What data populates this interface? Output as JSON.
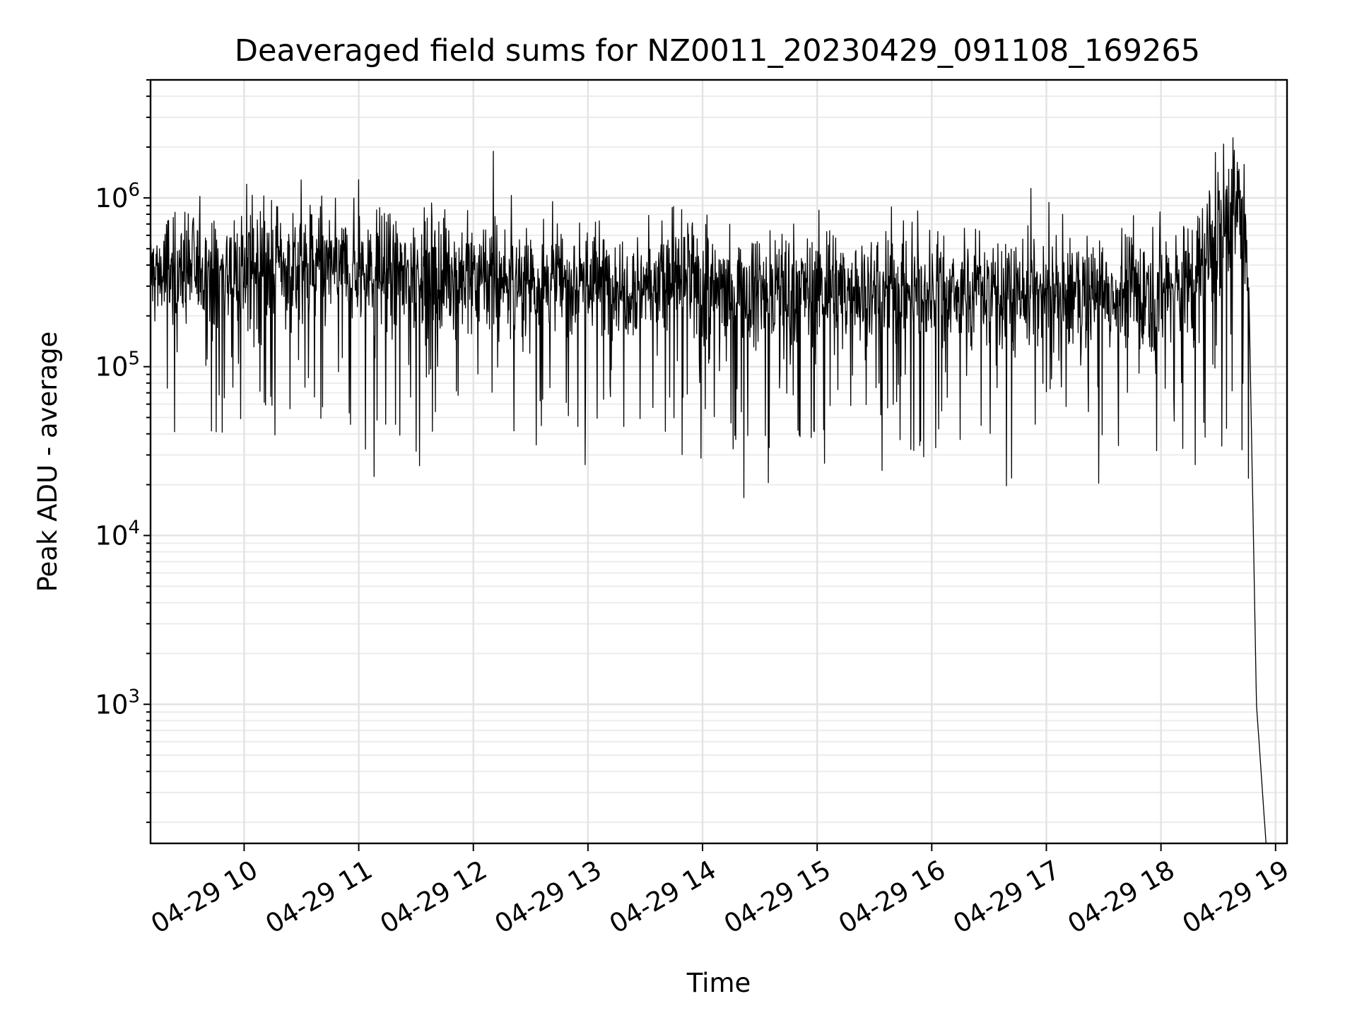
{
  "chart_data": {
    "type": "line",
    "title": "Deaveraged field sums for NZ0011_20230429_091108_169265",
    "xlabel": "Time",
    "ylabel": "Peak ADU - average",
    "yscale": "log",
    "ylim": [
      150,
      5000000
    ],
    "xlim": [
      "2023-04-29 09:11",
      "2023-04-29 19:06"
    ],
    "grid": true,
    "grid_minor": true,
    "line_color": "#000000",
    "x_ticks": [
      "04-29 10",
      "04-29 11",
      "04-29 12",
      "04-29 13",
      "04-29 14",
      "04-29 15",
      "04-29 16",
      "04-29 17",
      "04-29 18",
      "04-29 19"
    ],
    "y_ticks": [
      {
        "base": "10",
        "exp": "3",
        "value": 1000
      },
      {
        "base": "10",
        "exp": "4",
        "value": 10000
      },
      {
        "base": "10",
        "exp": "5",
        "value": 100000
      },
      {
        "base": "10",
        "exp": "6",
        "value": 1000000
      }
    ],
    "series": [
      {
        "x": [
          "2023-04-29 09:11",
          "2023-04-29 09:30",
          "2023-04-29 10:00",
          "2023-04-29 10:30",
          "2023-04-29 11:00",
          "2023-04-29 11:30",
          "2023-04-29 12:00",
          "2023-04-29 12:30",
          "2023-04-29 13:00",
          "2023-04-29 13:30",
          "2023-04-29 14:00",
          "2023-04-29 14:30",
          "2023-04-29 15:00",
          "2023-04-29 15:30",
          "2023-04-29 16:00",
          "2023-04-29 16:30",
          "2023-04-29 17:00",
          "2023-04-29 17:30",
          "2023-04-29 18:00",
          "2023-04-29 18:20",
          "2023-04-29 18:35",
          "2023-04-29 18:41",
          "2023-04-29 18:46",
          "2023-04-29 18:50",
          "2023-04-29 18:55"
        ],
        "y": [
          350000,
          380000,
          360000,
          400000,
          370000,
          360000,
          340000,
          330000,
          320000,
          310000,
          300000,
          290000,
          290000,
          280000,
          290000,
          290000,
          280000,
          270000,
          290000,
          330000,
          800000,
          1000000,
          300000,
          1000,
          150
        ]
      }
    ]
  }
}
